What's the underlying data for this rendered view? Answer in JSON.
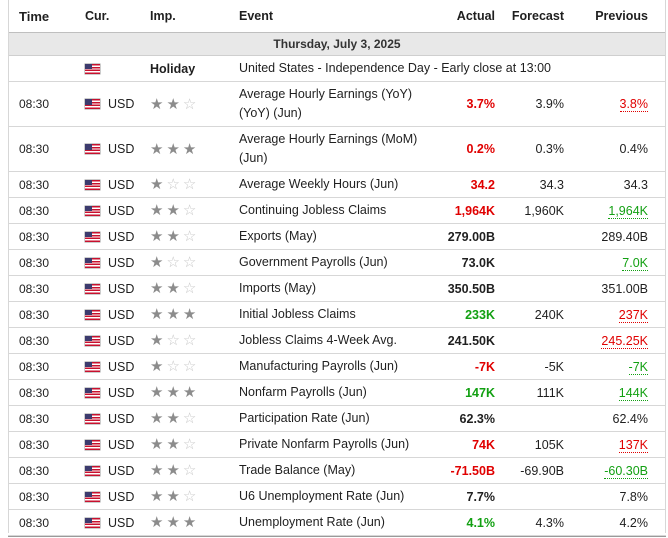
{
  "columns": {
    "time": "Time",
    "currency": "Cur.",
    "importance": "Imp.",
    "event": "Event",
    "actual": "Actual",
    "forecast": "Forecast",
    "previous": "Previous"
  },
  "date_label": "Thursday, July 3, 2025",
  "holiday": {
    "importance_label": "Holiday",
    "event": "United States - Independence Day - Early close at 13:00"
  },
  "colors": {
    "red": "#e00000",
    "green": "#12a012",
    "date_band": "#e8e8e8"
  },
  "rows": [
    {
      "time": "08:30",
      "currency": "USD",
      "stars": 2,
      "event": "Average Hourly Earnings (YoY) (YoY) (Jun)",
      "actual": "3.7%",
      "actual_color": "red",
      "forecast": "3.9%",
      "previous": "3.8%",
      "previous_color": "red"
    },
    {
      "time": "08:30",
      "currency": "USD",
      "stars": 3,
      "event": "Average Hourly Earnings (MoM) (Jun)",
      "actual": "0.2%",
      "actual_color": "red",
      "forecast": "0.3%",
      "previous": "0.4%",
      "previous_color": ""
    },
    {
      "time": "08:30",
      "currency": "USD",
      "stars": 1,
      "event": "Average Weekly Hours (Jun)",
      "actual": "34.2",
      "actual_color": "red",
      "forecast": "34.3",
      "previous": "34.3",
      "previous_color": ""
    },
    {
      "time": "08:30",
      "currency": "USD",
      "stars": 2,
      "event": "Continuing Jobless Claims",
      "actual": "1,964K",
      "actual_color": "red",
      "forecast": "1,960K",
      "previous": "1,964K",
      "previous_color": "green"
    },
    {
      "time": "08:30",
      "currency": "USD",
      "stars": 2,
      "event": "Exports (May)",
      "actual": "279.00B",
      "actual_color": "",
      "forecast": "",
      "previous": "289.40B",
      "previous_color": ""
    },
    {
      "time": "08:30",
      "currency": "USD",
      "stars": 1,
      "event": "Government Payrolls (Jun)",
      "actual": "73.0K",
      "actual_color": "",
      "forecast": "",
      "previous": "7.0K",
      "previous_color": "green"
    },
    {
      "time": "08:30",
      "currency": "USD",
      "stars": 2,
      "event": "Imports (May)",
      "actual": "350.50B",
      "actual_color": "",
      "forecast": "",
      "previous": "351.00B",
      "previous_color": ""
    },
    {
      "time": "08:30",
      "currency": "USD",
      "stars": 3,
      "event": "Initial Jobless Claims",
      "actual": "233K",
      "actual_color": "green",
      "forecast": "240K",
      "previous": "237K",
      "previous_color": "red"
    },
    {
      "time": "08:30",
      "currency": "USD",
      "stars": 1,
      "event": "Jobless Claims 4-Week Avg.",
      "actual": "241.50K",
      "actual_color": "",
      "forecast": "",
      "previous": "245.25K",
      "previous_color": "red"
    },
    {
      "time": "08:30",
      "currency": "USD",
      "stars": 1,
      "event": "Manufacturing Payrolls (Jun)",
      "actual": "-7K",
      "actual_color": "red",
      "forecast": "-5K",
      "previous": "-7K",
      "previous_color": "green"
    },
    {
      "time": "08:30",
      "currency": "USD",
      "stars": 3,
      "event": "Nonfarm Payrolls (Jun)",
      "actual": "147K",
      "actual_color": "green",
      "forecast": "111K",
      "previous": "144K",
      "previous_color": "green"
    },
    {
      "time": "08:30",
      "currency": "USD",
      "stars": 2,
      "event": "Participation Rate (Jun)",
      "actual": "62.3%",
      "actual_color": "",
      "forecast": "",
      "previous": "62.4%",
      "previous_color": ""
    },
    {
      "time": "08:30",
      "currency": "USD",
      "stars": 2,
      "event": "Private Nonfarm Payrolls (Jun)",
      "actual": "74K",
      "actual_color": "red",
      "forecast": "105K",
      "previous": "137K",
      "previous_color": "red"
    },
    {
      "time": "08:30",
      "currency": "USD",
      "stars": 2,
      "event": "Trade Balance (May)",
      "actual": "-71.50B",
      "actual_color": "red",
      "forecast": "-69.90B",
      "previous": "-60.30B",
      "previous_color": "green"
    },
    {
      "time": "08:30",
      "currency": "USD",
      "stars": 2,
      "event": "U6 Unemployment Rate (Jun)",
      "actual": "7.7%",
      "actual_color": "",
      "forecast": "",
      "previous": "7.8%",
      "previous_color": ""
    },
    {
      "time": "08:30",
      "currency": "USD",
      "stars": 3,
      "event": "Unemployment Rate (Jun)",
      "actual": "4.1%",
      "actual_color": "green",
      "forecast": "4.3%",
      "previous": "4.2%",
      "previous_color": ""
    }
  ]
}
